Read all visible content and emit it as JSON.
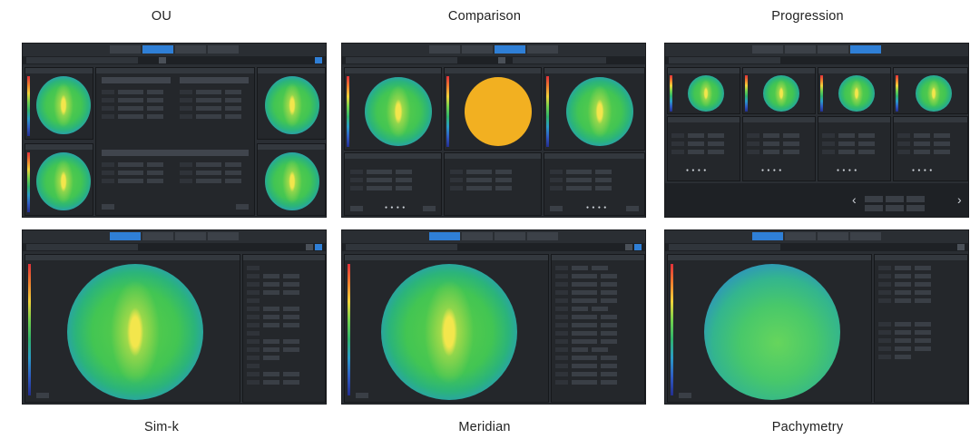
{
  "captions": {
    "ou": "OU",
    "comparison": "Comparison",
    "progression": "Progression",
    "simk": "Sim-k",
    "meridian": "Meridian",
    "pachymetry": "Pachymetry"
  },
  "colors": {
    "panel_bg": "#2a2e33",
    "active_tab": "#2f7fd6",
    "orange_map": "#f2b021"
  },
  "icons": {
    "prev": "chevron-left-icon",
    "next": "chevron-right-icon"
  },
  "glyphs": {
    "prev": "‹",
    "next": "›",
    "dots": "● ● ● ●"
  }
}
